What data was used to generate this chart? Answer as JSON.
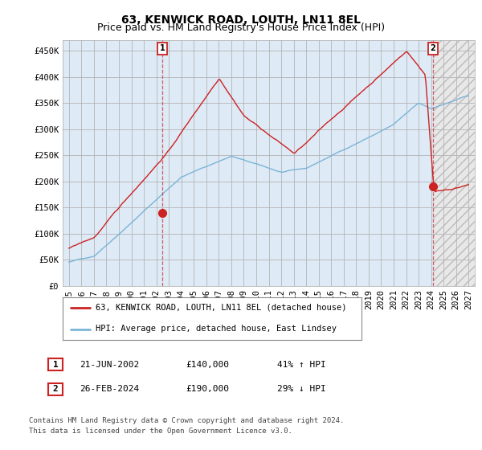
{
  "title": "63, KENWICK ROAD, LOUTH, LN11 8EL",
  "subtitle": "Price paid vs. HM Land Registry's House Price Index (HPI)",
  "ylabel_ticks": [
    "£0",
    "£50K",
    "£100K",
    "£150K",
    "£200K",
    "£250K",
    "£300K",
    "£350K",
    "£400K",
    "£450K"
  ],
  "ytick_vals": [
    0,
    50000,
    100000,
    150000,
    200000,
    250000,
    300000,
    350000,
    400000,
    450000
  ],
  "ylim": [
    0,
    470000
  ],
  "xlim_start": 1994.5,
  "xlim_end": 2027.5,
  "hpi_color": "#7ab4d8",
  "price_color": "#cc2222",
  "chart_bg_color": "#deeaf5",
  "marker1_date": 2002.47,
  "marker1_price": 140000,
  "marker2_date": 2024.15,
  "marker2_price": 190000,
  "legend_line1": "63, KENWICK ROAD, LOUTH, LN11 8EL (detached house)",
  "legend_line2": "HPI: Average price, detached house, East Lindsey",
  "table_row1": [
    "1",
    "21-JUN-2002",
    "£140,000",
    "41% ↑ HPI"
  ],
  "table_row2": [
    "2",
    "26-FEB-2024",
    "£190,000",
    "29% ↓ HPI"
  ],
  "footer1": "Contains HM Land Registry data © Crown copyright and database right 2024.",
  "footer2": "This data is licensed under the Open Government Licence v3.0.",
  "background_color": "#ffffff",
  "grid_color": "#aaaaaa",
  "title_fontsize": 10,
  "subtitle_fontsize": 9,
  "tick_fontsize": 7.5,
  "xticks": [
    1995,
    1996,
    1997,
    1998,
    1999,
    2000,
    2001,
    2002,
    2003,
    2004,
    2005,
    2006,
    2007,
    2008,
    2009,
    2010,
    2011,
    2012,
    2013,
    2014,
    2015,
    2016,
    2017,
    2018,
    2019,
    2020,
    2021,
    2022,
    2023,
    2024,
    2025,
    2026,
    2027
  ]
}
